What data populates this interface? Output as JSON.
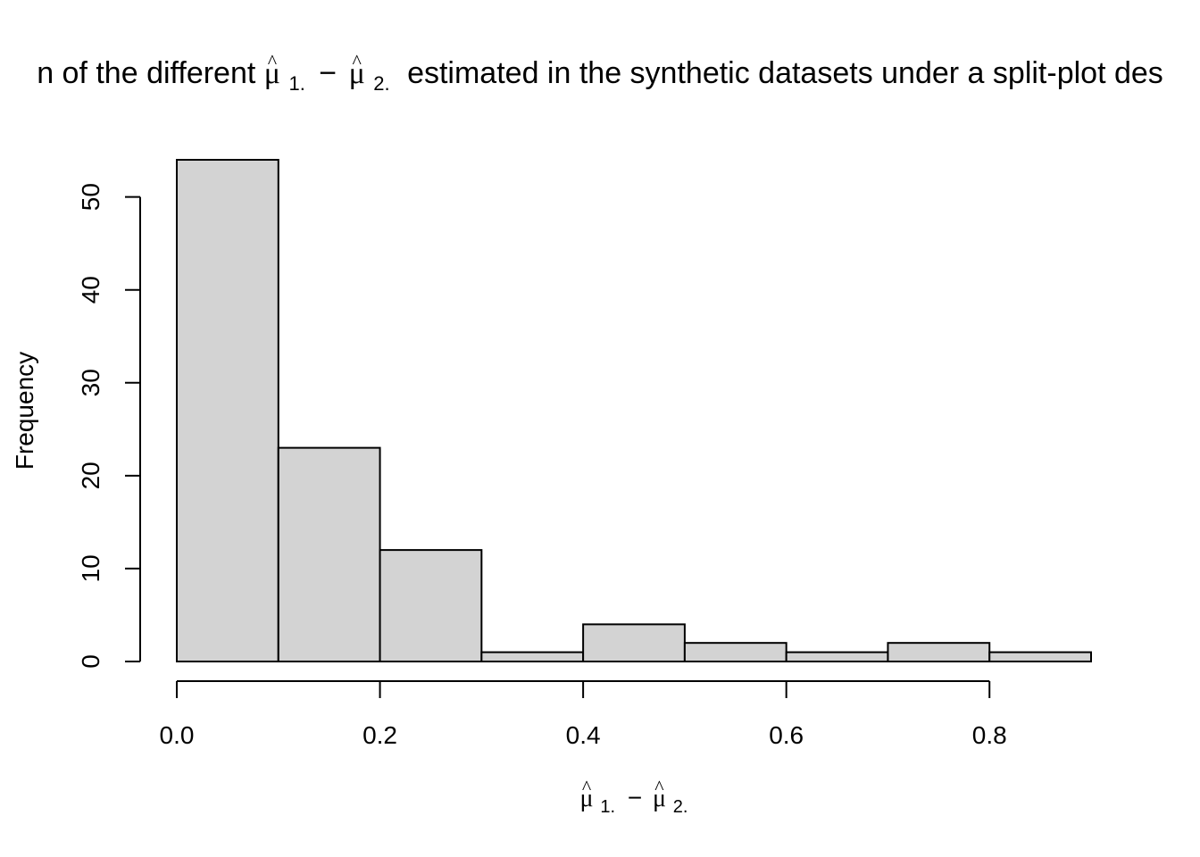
{
  "chart_data": {
    "type": "bar",
    "subtype": "histogram",
    "title": {
      "before": "n of the different",
      "symbol_1": "μ",
      "sub_1": "1.",
      "minus": "−",
      "symbol_2": "μ",
      "sub_2": "2.",
      "after": "estimated in the synthetic datasets under a split-plot des"
    },
    "xlabel": {
      "symbol_1": "μ",
      "sub_1": "1.",
      "minus": "−",
      "symbol_2": "μ",
      "sub_2": "2."
    },
    "hat": "^",
    "ylabel": "Frequency",
    "bins": [
      {
        "start": 0.0,
        "end": 0.1,
        "count": 54
      },
      {
        "start": 0.1,
        "end": 0.2,
        "count": 23
      },
      {
        "start": 0.2,
        "end": 0.3,
        "count": 12
      },
      {
        "start": 0.3,
        "end": 0.4,
        "count": 1
      },
      {
        "start": 0.4,
        "end": 0.5,
        "count": 4
      },
      {
        "start": 0.5,
        "end": 0.6,
        "count": 2
      },
      {
        "start": 0.6,
        "end": 0.7,
        "count": 1
      },
      {
        "start": 0.7,
        "end": 0.8,
        "count": 2
      },
      {
        "start": 0.8,
        "end": 0.9,
        "count": 1
      }
    ],
    "xlim": [
      0.0,
      0.9
    ],
    "ylim": [
      0,
      54
    ],
    "xticks": [
      0.0,
      0.2,
      0.4,
      0.6,
      0.8
    ],
    "xtick_labels": [
      "0.0",
      "0.2",
      "0.4",
      "0.6",
      "0.8"
    ],
    "yticks": [
      0,
      10,
      20,
      30,
      40,
      50
    ],
    "ytick_labels": [
      "0",
      "10",
      "20",
      "30",
      "40",
      "50"
    ],
    "bar_color": "#d3d3d3",
    "edge_color": "#000000",
    "grid": false,
    "legend": "none"
  }
}
